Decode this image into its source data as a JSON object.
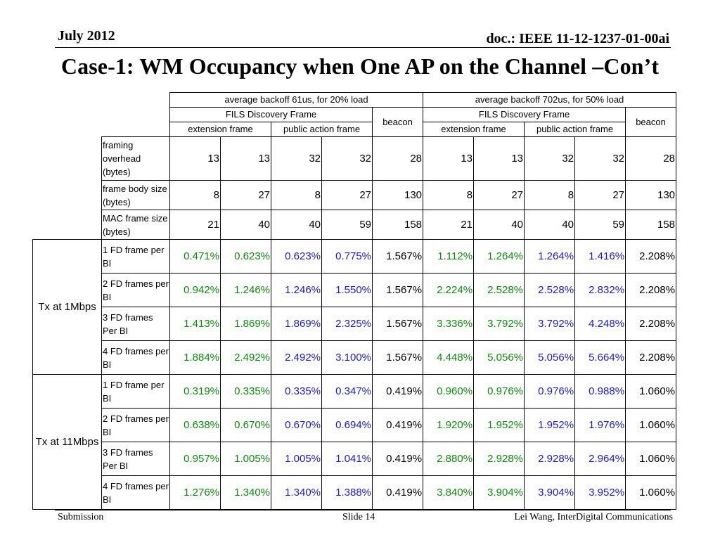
{
  "header": {
    "date": "July 2012",
    "doc_id": "doc.: IEEE 11-12-1237-01-00ai"
  },
  "title": "Case-1: WM Occupancy when One AP on the Channel –Con’t",
  "table": {
    "group_headers": [
      "average backoff 61us, for 20% load",
      "average backoff 702us, for 50% load"
    ],
    "fils_label": "FILS Discovery Frame",
    "beacon_label": "beacon",
    "subheaders": [
      "extension frame",
      "public action frame"
    ],
    "param_rows": [
      {
        "label": "framing overhead (bytes)",
        "values": [
          "13",
          "13",
          "32",
          "32",
          "28",
          "13",
          "13",
          "32",
          "32",
          "28"
        ]
      },
      {
        "label": "frame body size (bytes)",
        "values": [
          "8",
          "27",
          "8",
          "27",
          "130",
          "8",
          "27",
          "8",
          "27",
          "130"
        ]
      },
      {
        "label": "MAC  frame size (bytes)",
        "values": [
          "21",
          "40",
          "40",
          "59",
          "158",
          "21",
          "40",
          "40",
          "59",
          "158"
        ]
      }
    ],
    "groups": [
      {
        "label": "Tx at 1Mbps",
        "rows": [
          {
            "label": "1 FD frame per BI",
            "values": [
              "0.471%",
              "0.623%",
              "0.623%",
              "0.775%",
              "1.567%",
              "1.112%",
              "1.264%",
              "1.264%",
              "1.416%",
              "2.208%"
            ]
          },
          {
            "label": "2 FD frames per BI",
            "values": [
              "0.942%",
              "1.246%",
              "1.246%",
              "1.550%",
              "1.567%",
              "2.224%",
              "2.528%",
              "2.528%",
              "2.832%",
              "2.208%"
            ]
          },
          {
            "label": "3 FD frames Per BI",
            "values": [
              "1.413%",
              "1.869%",
              "1.869%",
              "2.325%",
              "1.567%",
              "3.336%",
              "3.792%",
              "3.792%",
              "4.248%",
              "2.208%"
            ]
          },
          {
            "label": "4 FD frames per BI",
            "values": [
              "1.884%",
              "2.492%",
              "2.492%",
              "3.100%",
              "1.567%",
              "4.448%",
              "5.056%",
              "5.056%",
              "5.664%",
              "2.208%"
            ]
          }
        ]
      },
      {
        "label": "Tx at 11Mbps",
        "rows": [
          {
            "label": "1 FD frame per BI",
            "values": [
              "0.319%",
              "0.335%",
              "0.335%",
              "0.347%",
              "0.419%",
              "0.960%",
              "0.976%",
              "0.976%",
              "0.988%",
              "1.060%"
            ]
          },
          {
            "label": "2 FD frames per BI",
            "values": [
              "0.638%",
              "0.670%",
              "0.670%",
              "0.694%",
              "0.419%",
              "1.920%",
              "1.952%",
              "1.952%",
              "1.976%",
              "1.060%"
            ]
          },
          {
            "label": "3 FD frames Per BI",
            "values": [
              "0.957%",
              "1.005%",
              "1.005%",
              "1.041%",
              "0.419%",
              "2.880%",
              "2.928%",
              "2.928%",
              "2.964%",
              "1.060%"
            ]
          },
          {
            "label": "4 FD frames per BI",
            "values": [
              "1.276%",
              "1.340%",
              "1.340%",
              "1.388%",
              "0.419%",
              "3.840%",
              "3.904%",
              "3.904%",
              "3.952%",
              "1.060%"
            ]
          }
        ]
      }
    ],
    "value_colors": {
      "extension": "#0d8a0d",
      "public_action": "#1a1ad6",
      "beacon": "#000000"
    }
  },
  "footer": {
    "left": "Submission",
    "center": "Slide 14",
    "right": "Lei Wang, InterDigital Communications"
  }
}
